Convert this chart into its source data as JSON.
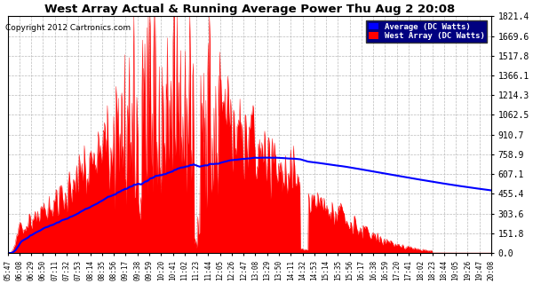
{
  "title": "West Array Actual & Running Average Power Thu Aug 2 20:08",
  "copyright": "Copyright 2012 Cartronics.com",
  "legend_labels": [
    "Average (DC Watts)",
    "West Array (DC Watts)"
  ],
  "legend_colors": [
    "#0000ff",
    "#ff0000"
  ],
  "y_max": 1821.4,
  "y_min": 0.0,
  "y_ticks": [
    0.0,
    151.8,
    303.6,
    455.4,
    607.1,
    758.9,
    910.7,
    1062.5,
    1214.3,
    1366.1,
    1517.8,
    1669.6,
    1821.4
  ],
  "background_color": "#ffffff",
  "plot_bg_color": "#ffffff",
  "grid_color": "#bbbbbb",
  "bar_color": "#ff0000",
  "avg_color": "#0000ff",
  "x_tick_labels": [
    "05:47",
    "06:08",
    "06:29",
    "06:50",
    "07:11",
    "07:32",
    "07:53",
    "08:14",
    "08:35",
    "08:56",
    "09:17",
    "09:38",
    "09:59",
    "10:20",
    "10:41",
    "11:02",
    "11:23",
    "11:44",
    "12:05",
    "12:26",
    "12:47",
    "13:08",
    "13:29",
    "13:50",
    "14:11",
    "14:32",
    "14:53",
    "15:14",
    "15:35",
    "15:56",
    "16:17",
    "16:38",
    "16:59",
    "17:20",
    "17:41",
    "18:02",
    "18:23",
    "18:44",
    "19:05",
    "19:26",
    "19:47",
    "20:08"
  ],
  "n_points": 840,
  "n_labels": 42
}
